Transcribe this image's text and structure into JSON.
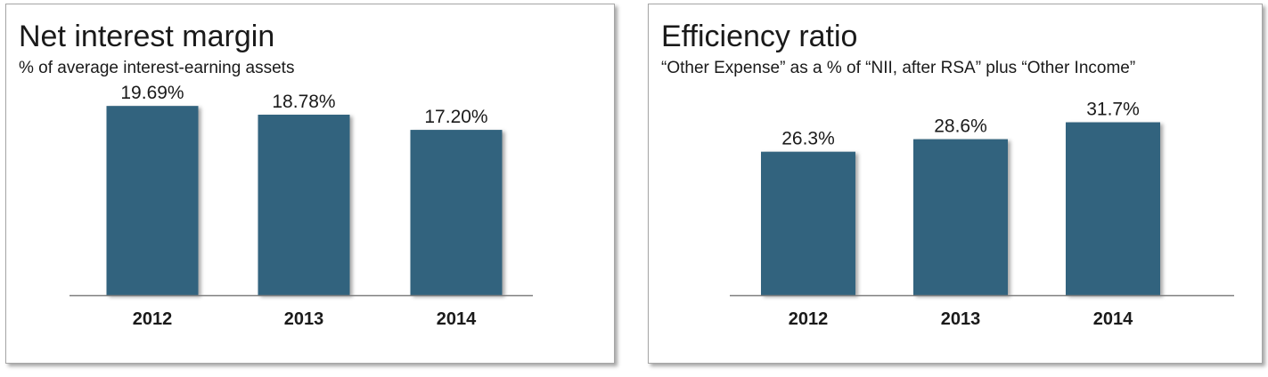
{
  "colors": {
    "bar": "#33647e",
    "axis": "#7f7f7f"
  },
  "chart_data": [
    {
      "type": "bar",
      "title": "Net interest margin",
      "subtitle": "% of average interest-earning assets",
      "categories": [
        "2012",
        "2013",
        "2014"
      ],
      "values": [
        19.69,
        18.78,
        17.2
      ],
      "data_labels": [
        "19.69%",
        "18.78%",
        "17.20%"
      ],
      "ylim": [
        0,
        21
      ],
      "grid": false,
      "legend": "none"
    },
    {
      "type": "bar",
      "title": "Efficiency ratio",
      "subtitle": "“Other Expense” as a % of “NII, after RSA” plus  “Other Income”",
      "categories": [
        "2012",
        "2013",
        "2014"
      ],
      "values": [
        26.3,
        28.6,
        31.7
      ],
      "data_labels": [
        "26.3%",
        "28.6%",
        "31.7%"
      ],
      "ylim": [
        0,
        37
      ],
      "grid": false,
      "legend": "none"
    }
  ]
}
